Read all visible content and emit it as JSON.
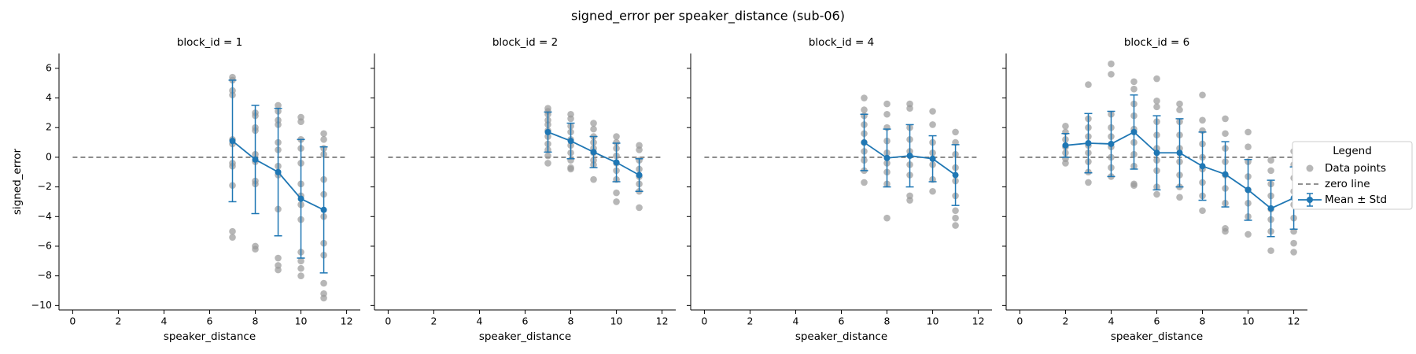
{
  "figure": {
    "title": "signed_error per speaker_distance (sub-06)"
  },
  "legend": {
    "title": "Legend",
    "placement": "right-center",
    "entries": [
      "Data points",
      "zero line",
      "Mean ± Std"
    ]
  },
  "colors": {
    "mean_line": "#1f77b4",
    "data_points": "#999999",
    "zero_line": "#6e6e6e"
  },
  "chart_data": [
    {
      "type": "scatter",
      "title": "block_id = 1",
      "xlabel": "speaker_distance",
      "ylabel": "signed_error",
      "xlim": [
        -0.6,
        12.6
      ],
      "ylim": [
        -10.3,
        7.0
      ],
      "xticks": [
        0,
        2,
        4,
        6,
        8,
        10,
        12
      ],
      "yticks": [
        -10,
        -8,
        -6,
        -4,
        -2,
        0,
        2,
        4,
        6
      ],
      "grid": false,
      "zero_line": 0,
      "points": [
        [
          7,
          5.4
        ],
        [
          7,
          5.2
        ],
        [
          7,
          4.5
        ],
        [
          7,
          4.2
        ],
        [
          7,
          1.2
        ],
        [
          7,
          0.9
        ],
        [
          7,
          -0.4
        ],
        [
          7,
          -0.6
        ],
        [
          7,
          -1.9
        ],
        [
          7,
          -5.0
        ],
        [
          7,
          -5.4
        ],
        [
          8,
          3.0
        ],
        [
          8,
          2.8
        ],
        [
          8,
          2.0
        ],
        [
          8,
          1.8
        ],
        [
          8,
          0.2
        ],
        [
          8,
          -0.3
        ],
        [
          8,
          -1.6
        ],
        [
          8,
          -1.8
        ],
        [
          8,
          -6.0
        ],
        [
          8,
          -6.2
        ],
        [
          9,
          3.5
        ],
        [
          9,
          3.1
        ],
        [
          9,
          2.5
        ],
        [
          9,
          2.2
        ],
        [
          9,
          1.0
        ],
        [
          9,
          0.5
        ],
        [
          9,
          -0.6
        ],
        [
          9,
          -1.2
        ],
        [
          9,
          -3.5
        ],
        [
          9,
          -6.8
        ],
        [
          9,
          -7.3
        ],
        [
          9,
          -7.6
        ],
        [
          10,
          2.7
        ],
        [
          10,
          2.4
        ],
        [
          10,
          1.2
        ],
        [
          10,
          0.6
        ],
        [
          10,
          -0.4
        ],
        [
          10,
          -1.8
        ],
        [
          10,
          -2.6
        ],
        [
          10,
          -3.2
        ],
        [
          10,
          -4.2
        ],
        [
          10,
          -6.4
        ],
        [
          10,
          -7.0
        ],
        [
          10,
          -7.5
        ],
        [
          10,
          -8.0
        ],
        [
          11,
          1.6
        ],
        [
          11,
          1.2
        ],
        [
          11,
          0.6
        ],
        [
          11,
          0.2
        ],
        [
          11,
          -1.5
        ],
        [
          11,
          -2.5
        ],
        [
          11,
          -4.0
        ],
        [
          11,
          -5.8
        ],
        [
          11,
          -6.6
        ],
        [
          11,
          -8.5
        ],
        [
          11,
          -9.2
        ],
        [
          11,
          -9.5
        ]
      ],
      "mean_std": [
        {
          "x": 7,
          "mean": 1.1,
          "std": 4.1
        },
        {
          "x": 8,
          "mean": -0.15,
          "std": 3.65
        },
        {
          "x": 9,
          "mean": -1.0,
          "std": 4.3
        },
        {
          "x": 10,
          "mean": -2.8,
          "std": 4.0
        },
        {
          "x": 11,
          "mean": -3.55,
          "std": 4.25
        }
      ]
    },
    {
      "type": "scatter",
      "title": "block_id = 2",
      "xlabel": "speaker_distance",
      "ylabel": "",
      "xlim": [
        -0.6,
        12.6
      ],
      "ylim": [
        -10.3,
        7.0
      ],
      "xticks": [
        0,
        2,
        4,
        6,
        8,
        10,
        12
      ],
      "yticks": [
        -10,
        -8,
        -6,
        -4,
        -2,
        0,
        2,
        4,
        6
      ],
      "grid": false,
      "zero_line": 0,
      "points": [
        [
          7,
          3.3
        ],
        [
          7,
          3.1
        ],
        [
          7,
          2.9
        ],
        [
          7,
          2.5
        ],
        [
          7,
          2.2
        ],
        [
          7,
          1.8
        ],
        [
          7,
          1.4
        ],
        [
          7,
          0.9
        ],
        [
          7,
          0.5
        ],
        [
          7,
          0.1
        ],
        [
          7,
          -0.4
        ],
        [
          8,
          2.9
        ],
        [
          8,
          2.6
        ],
        [
          8,
          2.1
        ],
        [
          8,
          1.7
        ],
        [
          8,
          1.2
        ],
        [
          8,
          0.8
        ],
        [
          8,
          0.3
        ],
        [
          8,
          -0.2
        ],
        [
          8,
          -0.7
        ],
        [
          8,
          -0.8
        ],
        [
          9,
          2.3
        ],
        [
          9,
          1.9
        ],
        [
          9,
          1.4
        ],
        [
          9,
          1.0
        ],
        [
          9,
          0.6
        ],
        [
          9,
          0.3
        ],
        [
          9,
          -0.2
        ],
        [
          9,
          -0.5
        ],
        [
          9,
          -1.5
        ],
        [
          10,
          1.4
        ],
        [
          10,
          1.0
        ],
        [
          10,
          0.6
        ],
        [
          10,
          0.1
        ],
        [
          10,
          -0.4
        ],
        [
          10,
          -0.9
        ],
        [
          10,
          -1.5
        ],
        [
          10,
          -2.4
        ],
        [
          10,
          -3.0
        ],
        [
          11,
          0.8
        ],
        [
          11,
          0.5
        ],
        [
          11,
          -0.2
        ],
        [
          11,
          -0.8
        ],
        [
          11,
          -1.3
        ],
        [
          11,
          -1.8
        ],
        [
          11,
          -2.3
        ],
        [
          11,
          -3.4
        ]
      ],
      "mean_std": [
        {
          "x": 7,
          "mean": 1.7,
          "std": 1.35
        },
        {
          "x": 8,
          "mean": 1.1,
          "std": 1.2
        },
        {
          "x": 9,
          "mean": 0.35,
          "std": 1.05
        },
        {
          "x": 10,
          "mean": -0.35,
          "std": 1.3
        },
        {
          "x": 11,
          "mean": -1.2,
          "std": 1.1
        }
      ]
    },
    {
      "type": "scatter",
      "title": "block_id = 4",
      "xlabel": "speaker_distance",
      "ylabel": "",
      "xlim": [
        -0.6,
        12.6
      ],
      "ylim": [
        -10.3,
        7.0
      ],
      "xticks": [
        0,
        2,
        4,
        6,
        8,
        10,
        12
      ],
      "yticks": [
        -10,
        -8,
        -6,
        -4,
        -2,
        0,
        2,
        4,
        6
      ],
      "grid": false,
      "zero_line": 0,
      "points": [
        [
          7,
          4.0
        ],
        [
          7,
          3.2
        ],
        [
          7,
          2.8
        ],
        [
          7,
          2.2
        ],
        [
          7,
          1.6
        ],
        [
          7,
          1.0
        ],
        [
          7,
          0.4
        ],
        [
          7,
          -0.2
        ],
        [
          7,
          -0.9
        ],
        [
          7,
          -1.7
        ],
        [
          8,
          3.6
        ],
        [
          8,
          2.9
        ],
        [
          8,
          2.0
        ],
        [
          8,
          1.1
        ],
        [
          8,
          0.3
        ],
        [
          8,
          -0.4
        ],
        [
          8,
          -1.0
        ],
        [
          8,
          -1.8
        ],
        [
          8,
          -4.1
        ],
        [
          9,
          3.6
        ],
        [
          9,
          3.3
        ],
        [
          9,
          2.0
        ],
        [
          9,
          1.2
        ],
        [
          9,
          0.4
        ],
        [
          9,
          -0.5
        ],
        [
          9,
          -1.2
        ],
        [
          9,
          -2.6
        ],
        [
          9,
          -2.9
        ],
        [
          10,
          3.1
        ],
        [
          10,
          2.2
        ],
        [
          10,
          1.0
        ],
        [
          10,
          0.3
        ],
        [
          10,
          -0.5
        ],
        [
          10,
          -1.5
        ],
        [
          10,
          -2.3
        ],
        [
          11,
          1.7
        ],
        [
          11,
          1.0
        ],
        [
          11,
          0.2
        ],
        [
          11,
          -0.7
        ],
        [
          11,
          -1.6
        ],
        [
          11,
          -2.6
        ],
        [
          11,
          -3.6
        ],
        [
          11,
          -4.1
        ],
        [
          11,
          -4.6
        ]
      ],
      "mean_std": [
        {
          "x": 7,
          "mean": 1.0,
          "std": 1.9
        },
        {
          "x": 8,
          "mean": -0.05,
          "std": 1.95
        },
        {
          "x": 9,
          "mean": 0.1,
          "std": 2.1
        },
        {
          "x": 10,
          "mean": -0.1,
          "std": 1.55
        },
        {
          "x": 11,
          "mean": -1.2,
          "std": 2.05
        }
      ]
    },
    {
      "type": "scatter",
      "title": "block_id = 6",
      "xlabel": "speaker_distance",
      "ylabel": "",
      "xlim": [
        -0.6,
        12.6
      ],
      "ylim": [
        -10.3,
        7.0
      ],
      "xticks": [
        0,
        2,
        4,
        6,
        8,
        10,
        12
      ],
      "yticks": [
        -10,
        -8,
        -6,
        -4,
        -2,
        0,
        2,
        4,
        6
      ],
      "grid": false,
      "zero_line": 0,
      "points": [
        [
          2,
          2.1
        ],
        [
          2,
          1.7
        ],
        [
          2,
          1.2
        ],
        [
          2,
          0.7
        ],
        [
          2,
          0.3
        ],
        [
          2,
          -0.1
        ],
        [
          2,
          -0.4
        ],
        [
          3,
          4.9
        ],
        [
          3,
          2.6
        ],
        [
          3,
          2.0
        ],
        [
          3,
          1.4
        ],
        [
          3,
          0.8
        ],
        [
          3,
          0.3
        ],
        [
          3,
          -0.3
        ],
        [
          3,
          -1.0
        ],
        [
          3,
          -1.7
        ],
        [
          4,
          6.3
        ],
        [
          4,
          5.6
        ],
        [
          4,
          2.9
        ],
        [
          4,
          2.0
        ],
        [
          4,
          1.4
        ],
        [
          4,
          0.7
        ],
        [
          4,
          0.0
        ],
        [
          4,
          -0.7
        ],
        [
          4,
          -1.3
        ],
        [
          5,
          5.1
        ],
        [
          5,
          4.6
        ],
        [
          5,
          3.6
        ],
        [
          5,
          2.8
        ],
        [
          5,
          1.9
        ],
        [
          5,
          1.0
        ],
        [
          5,
          0.2
        ],
        [
          5,
          -0.6
        ],
        [
          5,
          -1.8
        ],
        [
          5,
          -1.9
        ],
        [
          6,
          5.3
        ],
        [
          6,
          3.8
        ],
        [
          6,
          3.4
        ],
        [
          6,
          2.4
        ],
        [
          6,
          1.5
        ],
        [
          6,
          0.6
        ],
        [
          6,
          -0.2
        ],
        [
          6,
          -0.9
        ],
        [
          6,
          -2.0
        ],
        [
          6,
          -2.5
        ],
        [
          7,
          3.6
        ],
        [
          7,
          3.2
        ],
        [
          7,
          2.4
        ],
        [
          7,
          1.5
        ],
        [
          7,
          0.6
        ],
        [
          7,
          -0.3
        ],
        [
          7,
          -1.2
        ],
        [
          7,
          -2.0
        ],
        [
          7,
          -2.7
        ],
        [
          8,
          4.2
        ],
        [
          8,
          2.5
        ],
        [
          8,
          1.8
        ],
        [
          8,
          0.9
        ],
        [
          8,
          0.0
        ],
        [
          8,
          -0.8
        ],
        [
          8,
          -1.7
        ],
        [
          8,
          -2.6
        ],
        [
          8,
          -3.6
        ],
        [
          9,
          2.6
        ],
        [
          9,
          1.6
        ],
        [
          9,
          0.6
        ],
        [
          9,
          -0.3
        ],
        [
          9,
          -1.2
        ],
        [
          9,
          -2.1
        ],
        [
          9,
          -3.1
        ],
        [
          9,
          -4.8
        ],
        [
          9,
          -5.0
        ],
        [
          10,
          1.7
        ],
        [
          10,
          0.7
        ],
        [
          10,
          -0.3
        ],
        [
          10,
          -1.3
        ],
        [
          10,
          -2.2
        ],
        [
          10,
          -3.1
        ],
        [
          10,
          -4.0
        ],
        [
          10,
          -5.2
        ],
        [
          11,
          -0.2
        ],
        [
          11,
          -0.9
        ],
        [
          11,
          -1.8
        ],
        [
          11,
          -2.6
        ],
        [
          11,
          -3.5
        ],
        [
          11,
          -4.2
        ],
        [
          11,
          -5.0
        ],
        [
          11,
          -6.3
        ],
        [
          12,
          0.4
        ],
        [
          12,
          -0.5
        ],
        [
          12,
          -1.4
        ],
        [
          12,
          -2.3
        ],
        [
          12,
          -3.2
        ],
        [
          12,
          -4.1
        ],
        [
          12,
          -5.0
        ],
        [
          12,
          -5.8
        ],
        [
          12,
          -6.4
        ]
      ],
      "mean_std": [
        {
          "x": 2,
          "mean": 0.8,
          "std": 0.8
        },
        {
          "x": 3,
          "mean": 0.95,
          "std": 2.0
        },
        {
          "x": 4,
          "mean": 0.9,
          "std": 2.2
        },
        {
          "x": 5,
          "mean": 1.7,
          "std": 2.5
        },
        {
          "x": 6,
          "mean": 0.3,
          "std": 2.5
        },
        {
          "x": 7,
          "mean": 0.3,
          "std": 2.3
        },
        {
          "x": 8,
          "mean": -0.6,
          "std": 2.3
        },
        {
          "x": 9,
          "mean": -1.15,
          "std": 2.2
        },
        {
          "x": 10,
          "mean": -2.2,
          "std": 2.05
        },
        {
          "x": 11,
          "mean": -3.45,
          "std": 1.9
        },
        {
          "x": 12,
          "mean": -2.75,
          "std": 2.1
        }
      ]
    }
  ]
}
